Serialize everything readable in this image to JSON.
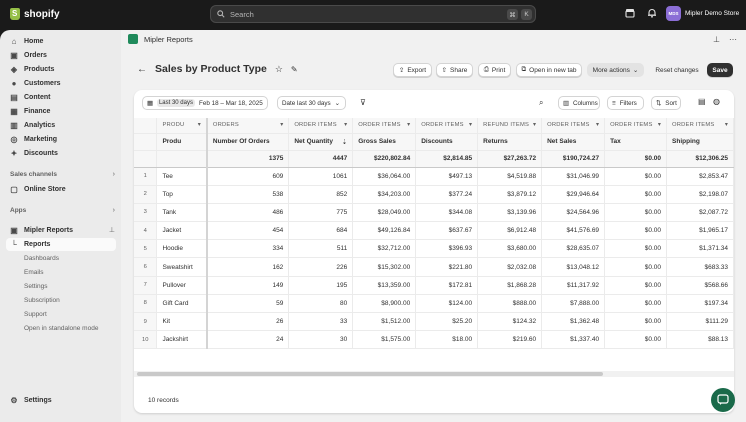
{
  "topbar": {
    "brand": "shopify",
    "search_placeholder": "Search",
    "kbd1": "⌘",
    "kbd2": "K",
    "store_initials": "MDS",
    "store_name": "Mipler Demo Store"
  },
  "sidebar": {
    "items": [
      {
        "label": "Home",
        "icon": "home-icon"
      },
      {
        "label": "Orders",
        "icon": "orders-icon"
      },
      {
        "label": "Products",
        "icon": "tag-icon"
      },
      {
        "label": "Customers",
        "icon": "person-icon"
      },
      {
        "label": "Content",
        "icon": "content-icon"
      },
      {
        "label": "Finance",
        "icon": "bank-icon"
      },
      {
        "label": "Analytics",
        "icon": "chart-icon"
      },
      {
        "label": "Marketing",
        "icon": "target-icon"
      },
      {
        "label": "Discounts",
        "icon": "discount-icon"
      }
    ],
    "sales_channels": "Sales channels",
    "online_store": "Online Store",
    "apps": "Apps",
    "app_name": "Mipler Reports",
    "app_subitems": [
      "Reports",
      "Dashboards",
      "Emails",
      "Settings",
      "Subscription",
      "Support",
      "Open in standalone mode"
    ],
    "settings": "Settings"
  },
  "app_header": {
    "title": "Mipler Reports"
  },
  "page": {
    "title": "Sales by Product Type",
    "buttons": {
      "export": "Export",
      "share": "Share",
      "print": "Print",
      "open_new_tab": "Open in new tab",
      "more_actions": "More actions",
      "reset": "Reset changes",
      "save": "Save"
    }
  },
  "filters": {
    "range_tag": "Last 30 days",
    "range_value": "Feb 18 – Mar 18, 2025",
    "date_filter": "Date last 30 days",
    "columns": "Columns",
    "filters": "Filters",
    "sort": "Sort"
  },
  "table": {
    "group_headers": [
      "PRODU",
      "ORDERS",
      "ORDER ITEMS",
      "ORDER ITEMS",
      "ORDER ITEMS",
      "REFUND ITEMS",
      "ORDER ITEMS",
      "ORDER ITEMS",
      "ORDER ITEMS"
    ],
    "headers": [
      "Produ",
      "Number Of Orders",
      "Net Quantity",
      "Gross Sales",
      "Discounts",
      "Returns",
      "Net Sales",
      "Tax",
      "Shipping"
    ],
    "totals": [
      "",
      "1375",
      "4447",
      "$220,802.84",
      "$2,814.85",
      "$27,263.72",
      "$190,724.27",
      "$0.00",
      "$12,306.25"
    ],
    "rows": [
      [
        "1",
        "Tee",
        "609",
        "1061",
        "$36,064.00",
        "$497.13",
        "$4,519.88",
        "$31,046.99",
        "$0.00",
        "$2,853.47"
      ],
      [
        "2",
        "Top",
        "538",
        "852",
        "$34,203.00",
        "$377.24",
        "$3,879.12",
        "$29,946.64",
        "$0.00",
        "$2,198.07"
      ],
      [
        "3",
        "Tank",
        "486",
        "775",
        "$28,049.00",
        "$344.08",
        "$3,139.96",
        "$24,564.96",
        "$0.00",
        "$2,087.72"
      ],
      [
        "4",
        "Jacket",
        "454",
        "684",
        "$49,126.84",
        "$637.67",
        "$6,912.48",
        "$41,576.69",
        "$0.00",
        "$1,965.17"
      ],
      [
        "5",
        "Hoodie",
        "334",
        "511",
        "$32,712.00",
        "$396.93",
        "$3,680.00",
        "$28,635.07",
        "$0.00",
        "$1,371.34"
      ],
      [
        "6",
        "Sweatshirt",
        "162",
        "226",
        "$15,302.00",
        "$221.80",
        "$2,032.08",
        "$13,048.12",
        "$0.00",
        "$683.33"
      ],
      [
        "7",
        "Pullover",
        "149",
        "195",
        "$13,359.00",
        "$172.81",
        "$1,868.28",
        "$11,317.92",
        "$0.00",
        "$568.66"
      ],
      [
        "8",
        "Gift Card",
        "59",
        "80",
        "$8,900.00",
        "$124.00",
        "$888.00",
        "$7,888.00",
        "$0.00",
        "$197.34"
      ],
      [
        "9",
        "Kit",
        "26",
        "33",
        "$1,512.00",
        "$25.20",
        "$124.32",
        "$1,362.48",
        "$0.00",
        "$111.29"
      ],
      [
        "10",
        "Jackshirt",
        "24",
        "30",
        "$1,575.00",
        "$18.00",
        "$219.60",
        "$1,337.40",
        "$0.00",
        "$88.13"
      ]
    ],
    "footer": "10 records"
  }
}
